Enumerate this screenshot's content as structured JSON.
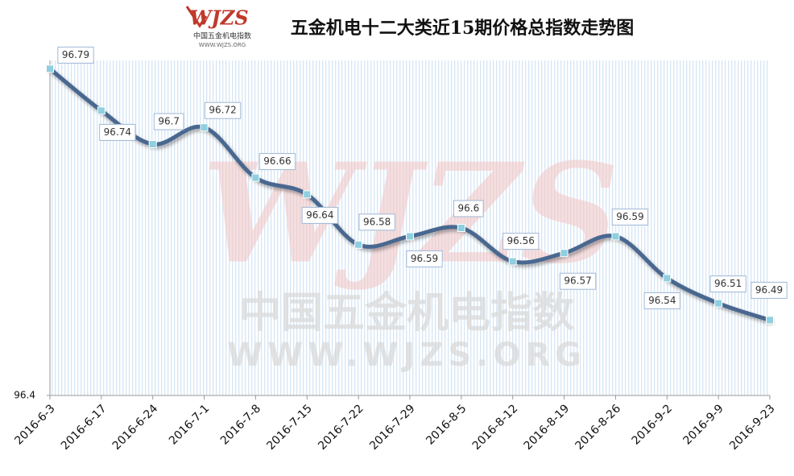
{
  "chart_data": {
    "type": "line",
    "title": "五金机电十二大类近15期价格总指数走势图",
    "logo": {
      "brand": "WJZS",
      "name": "中国五金机电指数",
      "url": "WWW.WJZS.ORG"
    },
    "watermark": {
      "brand": "WJZS",
      "name": "中国五金机电指数",
      "url": "WWW.WJZS.ORG"
    },
    "categories": [
      "2016-6-3",
      "2016-6-17",
      "2016-6-24",
      "2016-7-1",
      "2016-7-8",
      "2016-7-15",
      "2016-7-22",
      "2016-7-29",
      "2016-8-5",
      "2016-8-12",
      "2016-8-19",
      "2016-8-26",
      "2016-9-2",
      "2016-9-9",
      "2016-9-23"
    ],
    "series": [
      {
        "name": "价格总指数",
        "color": "#4a6890",
        "marker_color": "#8ecfe0",
        "values": [
          96.79,
          96.74,
          96.7,
          96.72,
          96.66,
          96.64,
          96.58,
          96.59,
          96.6,
          96.56,
          96.57,
          96.59,
          96.54,
          96.51,
          96.49
        ]
      }
    ],
    "ylim": [
      96.4,
      96.8
    ],
    "yticks": [
      96.4
    ]
  }
}
